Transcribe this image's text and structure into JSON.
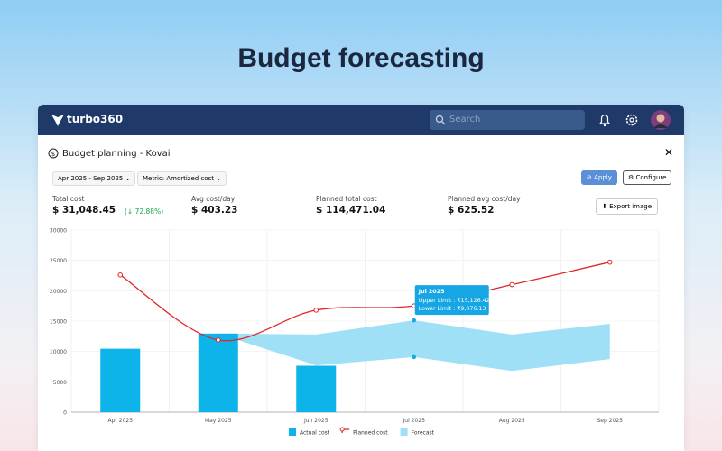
{
  "page_title": "Budget forecasting",
  "app": {
    "brand": "turbo360",
    "search_placeholder": "Search"
  },
  "panel": {
    "title": "Budget planning - Kovai",
    "filters": [
      "Apr 2025 - Sep 2025",
      "Metric: Amortized cost"
    ],
    "buttons": {
      "apply": "Apply",
      "configure": "Configure",
      "export": "Export image"
    },
    "kpis": [
      {
        "label": "Total cost",
        "value": "$ 31,048.45",
        "change": "(↓ 72.88%)"
      },
      {
        "label": "Avg cost/day",
        "value": "$ 403.23"
      },
      {
        "label": "Planned total cost",
        "value": "$ 114,471.04"
      },
      {
        "label": "Planned avg cost/day",
        "value": "$ 625.52"
      }
    ]
  },
  "chart_data": {
    "type": "combo",
    "categories": [
      "Apr 2025",
      "May 2025",
      "Jun 2025",
      "Jul 2025",
      "Aug 2025",
      "Sep 2025"
    ],
    "series": [
      {
        "name": "Actual cost",
        "type": "bar",
        "color": "#0db4ea",
        "values": [
          10450,
          12950,
          7650,
          null,
          null,
          null
        ]
      },
      {
        "name": "Planned cost",
        "type": "line",
        "color": "#e0262a",
        "values": [
          22600,
          11900,
          16800,
          17500,
          21000,
          24700
        ]
      },
      {
        "name": "Forecast",
        "type": "range",
        "color": "#9fe0f7",
        "upper": [
          null,
          12950,
          12800,
          15126.42,
          12800,
          14550
        ],
        "lower": [
          null,
          12950,
          7700,
          9076.13,
          6800,
          8750
        ]
      }
    ],
    "ylim": [
      0,
      30000
    ],
    "yticks": [
      0,
      5000,
      10000,
      15000,
      20000,
      25000,
      30000
    ],
    "grid": true,
    "tooltip": {
      "title": "Jul 2025",
      "lines": [
        "Upper Limit : ₹15,126.42",
        "Lower Limit : ₹9,076.13"
      ]
    }
  }
}
